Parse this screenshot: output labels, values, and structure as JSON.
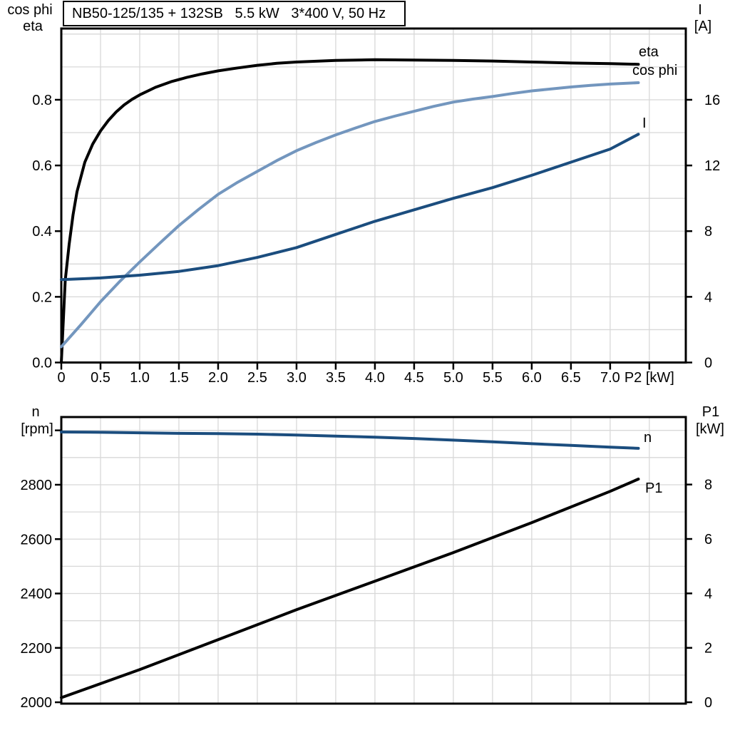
{
  "title": "NB50-125/135 + 132SB   5.5 kW   3*400 V, 50 Hz",
  "colors": {
    "eta": "#000000",
    "cos_phi": "#7396be",
    "current": "#1b4d7e",
    "speed": "#1b4d7e",
    "p1": "#000000",
    "grid": "#d8d8d8",
    "axis": "#000000",
    "background": "#ffffff"
  },
  "chart_data": [
    {
      "id": "motor-performance",
      "type": "line",
      "title": "NB50-125/135 + 132SB   5.5 kW   3*400 V, 50 Hz",
      "grid": true,
      "legend_position": "curve-end-labels",
      "x_axis": {
        "label": "P2 [kW]",
        "min": 0,
        "max": 7.965,
        "grid_values": [
          0.5,
          1.0,
          1.5,
          2.0,
          2.5,
          3.0,
          3.5,
          4.0,
          4.5,
          5.0,
          5.5,
          6.0,
          6.5,
          7.0,
          7.5
        ],
        "ticks": [
          {
            "v": 0,
            "label": "0"
          },
          {
            "v": 0.5,
            "label": "0.5"
          },
          {
            "v": 1.0,
            "label": "1.0"
          },
          {
            "v": 1.5,
            "label": "1.5"
          },
          {
            "v": 2.0,
            "label": "2.0"
          },
          {
            "v": 2.5,
            "label": "2.5"
          },
          {
            "v": 3.0,
            "label": "3.0"
          },
          {
            "v": 3.5,
            "label": "3.5"
          },
          {
            "v": 4.0,
            "label": "4.0"
          },
          {
            "v": 4.5,
            "label": "4.5"
          },
          {
            "v": 5.0,
            "label": "5.0"
          },
          {
            "v": 5.5,
            "label": "5.5"
          },
          {
            "v": 6.0,
            "label": "6.0"
          },
          {
            "v": 6.5,
            "label": "6.5"
          },
          {
            "v": 7.0,
            "label": "7.0"
          },
          {
            "v": 7.5,
            "label": "P2 [kW]"
          }
        ]
      },
      "y_left": {
        "title_lines": [
          "cos phi",
          "eta"
        ],
        "min": 0,
        "max": 1.017,
        "grid_values": [
          0.1,
          0.2,
          0.3,
          0.4,
          0.5,
          0.6,
          0.7,
          0.8,
          0.9,
          1.0
        ],
        "ticks": [
          {
            "v": 0.0,
            "label": "0.0"
          },
          {
            "v": 0.2,
            "label": "0.2"
          },
          {
            "v": 0.4,
            "label": "0.4"
          },
          {
            "v": 0.6,
            "label": "0.6"
          },
          {
            "v": 0.8,
            "label": "0.8"
          }
        ]
      },
      "y_right": {
        "title_lines": [
          "I",
          "[A]"
        ],
        "min": 0,
        "max": 20.34,
        "ticks": [
          {
            "v": 0,
            "label": "0"
          },
          {
            "v": 4,
            "label": "4"
          },
          {
            "v": 8,
            "label": "8"
          },
          {
            "v": 12,
            "label": "12"
          },
          {
            "v": 16,
            "label": "16"
          }
        ]
      },
      "series": [
        {
          "name": "eta",
          "label": "eta",
          "axis": "left",
          "color": "#000000",
          "points": [
            [
              0,
              0
            ],
            [
              0.05,
              0.25
            ],
            [
              0.1,
              0.36
            ],
            [
              0.15,
              0.45
            ],
            [
              0.2,
              0.52
            ],
            [
              0.3,
              0.61
            ],
            [
              0.4,
              0.665
            ],
            [
              0.5,
              0.705
            ],
            [
              0.6,
              0.737
            ],
            [
              0.7,
              0.763
            ],
            [
              0.8,
              0.784
            ],
            [
              0.9,
              0.801
            ],
            [
              1.0,
              0.815
            ],
            [
              1.2,
              0.838
            ],
            [
              1.4,
              0.855
            ],
            [
              1.6,
              0.868
            ],
            [
              1.8,
              0.879
            ],
            [
              2.0,
              0.888
            ],
            [
              2.25,
              0.897
            ],
            [
              2.5,
              0.905
            ],
            [
              2.75,
              0.911
            ],
            [
              3.0,
              0.915
            ],
            [
              3.5,
              0.92
            ],
            [
              4.0,
              0.922
            ],
            [
              4.5,
              0.921
            ],
            [
              5.0,
              0.92
            ],
            [
              5.5,
              0.918
            ],
            [
              6.0,
              0.915
            ],
            [
              6.5,
              0.912
            ],
            [
              7.0,
              0.91
            ],
            [
              7.36,
              0.908
            ]
          ]
        },
        {
          "name": "cos phi",
          "label": "cos phi",
          "axis": "left",
          "color": "#7396be",
          "points": [
            [
              0,
              0.048
            ],
            [
              0.25,
              0.115
            ],
            [
              0.5,
              0.185
            ],
            [
              0.75,
              0.248
            ],
            [
              1.0,
              0.306
            ],
            [
              1.25,
              0.362
            ],
            [
              1.5,
              0.417
            ],
            [
              1.75,
              0.466
            ],
            [
              2.0,
              0.512
            ],
            [
              2.25,
              0.549
            ],
            [
              2.5,
              0.582
            ],
            [
              2.75,
              0.615
            ],
            [
              3.0,
              0.645
            ],
            [
              3.25,
              0.67
            ],
            [
              3.5,
              0.693
            ],
            [
              3.75,
              0.714
            ],
            [
              4.0,
              0.734
            ],
            [
              4.25,
              0.75
            ],
            [
              4.5,
              0.765
            ],
            [
              4.75,
              0.78
            ],
            [
              5.0,
              0.793
            ],
            [
              5.25,
              0.802
            ],
            [
              5.5,
              0.81
            ],
            [
              5.75,
              0.819
            ],
            [
              6.0,
              0.827
            ],
            [
              6.25,
              0.833
            ],
            [
              6.5,
              0.839
            ],
            [
              6.75,
              0.844
            ],
            [
              7.0,
              0.848
            ],
            [
              7.36,
              0.852
            ]
          ]
        },
        {
          "name": "I",
          "label": "I",
          "axis": "right",
          "color": "#1b4d7e",
          "points": [
            [
              0,
              5.05
            ],
            [
              0.5,
              5.15
            ],
            [
              1.0,
              5.32
            ],
            [
              1.5,
              5.55
            ],
            [
              2.0,
              5.9
            ],
            [
              2.5,
              6.4
            ],
            [
              3.0,
              7.0
            ],
            [
              3.5,
              7.8
            ],
            [
              4.0,
              8.6
            ],
            [
              4.5,
              9.3
            ],
            [
              5.0,
              10.0
            ],
            [
              5.5,
              10.65
            ],
            [
              6.0,
              11.4
            ],
            [
              6.5,
              12.2
            ],
            [
              7.0,
              13.0
            ],
            [
              7.36,
              13.9
            ]
          ]
        }
      ]
    },
    {
      "id": "speed-and-input-power",
      "type": "line",
      "title": "",
      "grid": true,
      "legend_position": "curve-end-labels",
      "x_axis": {
        "label": "",
        "min": 0,
        "max": 7.965,
        "grid_values": [
          0.5,
          1.0,
          1.5,
          2.0,
          2.5,
          3.0,
          3.5,
          4.0,
          4.5,
          5.0,
          5.5,
          6.0,
          6.5,
          7.0,
          7.5
        ],
        "ticks": []
      },
      "y_left": {
        "title_lines": [
          "n",
          "[rpm]"
        ],
        "min": 1995,
        "max": 3049,
        "grid_values": [
          2100,
          2200,
          2300,
          2400,
          2500,
          2600,
          2700,
          2800,
          2900,
          3000
        ],
        "ticks": [
          {
            "v": 2000,
            "label": "2000"
          },
          {
            "v": 2200,
            "label": "2200"
          },
          {
            "v": 2400,
            "label": "2400"
          },
          {
            "v": 2600,
            "label": "2600"
          },
          {
            "v": 2800,
            "label": "2800"
          },
          {
            "v": 3000,
            "label": ""
          }
        ]
      },
      "y_right": {
        "title_lines": [
          "P1",
          "[kW]"
        ],
        "min": -0.05,
        "max": 10.48,
        "ticks": [
          {
            "v": 0,
            "label": "0"
          },
          {
            "v": 2,
            "label": "2"
          },
          {
            "v": 4,
            "label": "4"
          },
          {
            "v": 6,
            "label": "6"
          },
          {
            "v": 8,
            "label": "8"
          }
        ]
      },
      "series": [
        {
          "name": "n",
          "label": "n",
          "axis": "left",
          "color": "#1b4d7e",
          "points": [
            [
              0,
              2994
            ],
            [
              0.5,
              2993
            ],
            [
              1.0,
              2991
            ],
            [
              1.5,
              2989
            ],
            [
              2.0,
              2988
            ],
            [
              2.5,
              2986
            ],
            [
              3.0,
              2983
            ],
            [
              3.5,
              2979
            ],
            [
              4.0,
              2975
            ],
            [
              4.5,
              2970
            ],
            [
              5.0,
              2964
            ],
            [
              5.5,
              2958
            ],
            [
              6.0,
              2951
            ],
            [
              6.5,
              2945
            ],
            [
              7.0,
              2938
            ],
            [
              7.36,
              2934
            ]
          ]
        },
        {
          "name": "P1",
          "label": "P1",
          "axis": "right",
          "color": "#000000",
          "points": [
            [
              0,
              0.17
            ],
            [
              1.0,
              1.2
            ],
            [
              2.0,
              2.3
            ],
            [
              3.0,
              3.4
            ],
            [
              4.0,
              4.45
            ],
            [
              5.0,
              5.5
            ],
            [
              6.0,
              6.6
            ],
            [
              7.0,
              7.75
            ],
            [
              7.36,
              8.2
            ]
          ]
        }
      ]
    }
  ]
}
